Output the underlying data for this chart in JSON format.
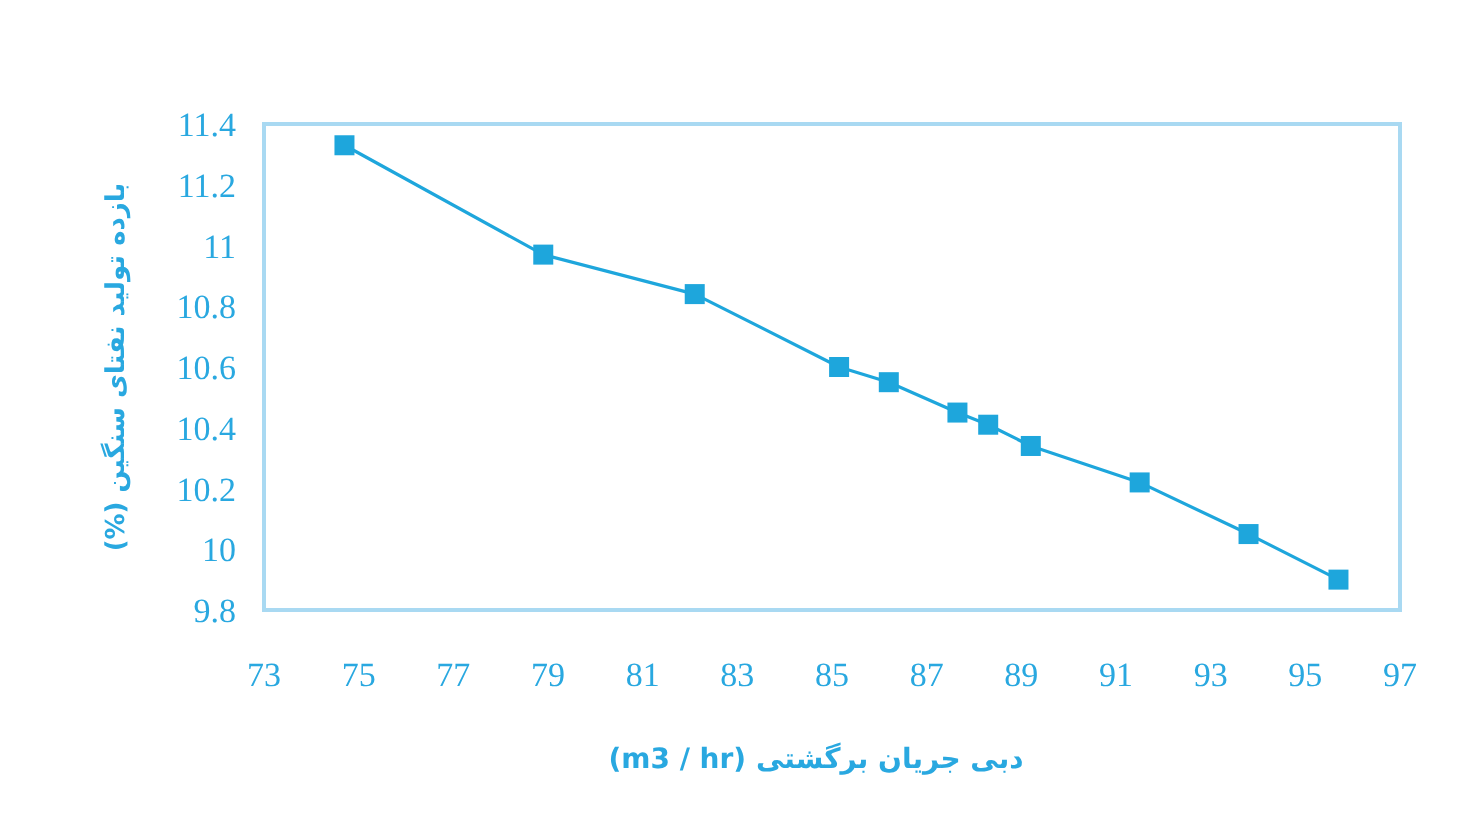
{
  "chart_data": {
    "type": "line",
    "xlabel": "دبی جریان برگشتی (m3 / hr)",
    "ylabel": "بازده تولید نفتای سنگین (%)",
    "x": [
      74.7,
      78.9,
      82.1,
      85.15,
      86.2,
      87.65,
      88.3,
      89.2,
      91.5,
      93.8,
      95.7
    ],
    "series": [
      {
        "color": "#1ea6dc",
        "values": [
          11.33,
          10.97,
          10.84,
          10.6,
          10.55,
          10.45,
          10.41,
          10.34,
          10.22,
          10.05,
          9.9
        ]
      }
    ],
    "xlim": [
      73,
      97
    ],
    "xticks": [
      73,
      75,
      77,
      79,
      81,
      83,
      85,
      87,
      89,
      91,
      93,
      95,
      97
    ],
    "ylim": [
      9.8,
      11.4
    ],
    "yticks": [
      9.8,
      10,
      10.2,
      10.4,
      10.6,
      10.8,
      11,
      11.2,
      11.4
    ],
    "marker": "square",
    "line_style": "solid",
    "grid": false
  }
}
